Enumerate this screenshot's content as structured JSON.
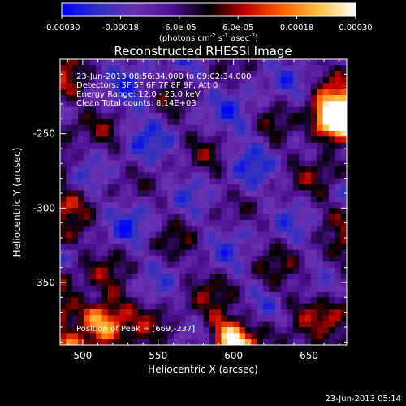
{
  "chart_data": {
    "type": "heatmap",
    "title": "Reconstructed RHESSI Image",
    "xlabel": "Heliocentric X (arcsec)",
    "ylabel": "Heliocentric Y (arcsec)",
    "xlim": [
      485,
      675
    ],
    "ylim": [
      -392,
      -200
    ],
    "xticks": [
      500,
      550,
      600,
      650
    ],
    "yticks": [
      -250,
      -300,
      -350
    ],
    "colorbar": {
      "range": [
        -0.0003,
        0.0003
      ],
      "tick_labels": [
        "-0.00030",
        "-0.00018",
        "-6.0e-05",
        "6.0e-05",
        "0.00018",
        "0.00030"
      ],
      "unit_label": "(photons cm",
      "unit_exp1": "-2",
      "unit_mid": " s",
      "unit_exp2": "-1",
      "unit_tail": " asec",
      "unit_exp3": "-2",
      "unit_close": ")",
      "colors": [
        "#0000ff",
        "#3030c0",
        "#6a32b0",
        "#4a1090",
        "#000000",
        "#c00000",
        "#ff6000",
        "#ffc040",
        "#ffffff"
      ]
    },
    "annotations": [
      "23-Jun-2013 08:56:34.000 to 09:02:34.000",
      "Detectors: 3F 5F 6F 7F 8F 9F, Att 0",
      "Energy Range: 12.0 - 25.0 keV",
      "Clean    Total counts: 8.14E+03"
    ],
    "peak_label": "Position of Peak = [669,-237]",
    "peaks": [
      {
        "x": 669,
        "y": -237,
        "v": 1.0
      },
      {
        "x": 512,
        "y": -375,
        "v": 0.95
      },
      {
        "x": 598,
        "y": -388,
        "v": 0.8
      },
      {
        "x": 665,
        "y": -245,
        "v": 0.7
      }
    ],
    "grid_size": 48
  },
  "footer": {
    "timestamp": "23-Jun-2013 05:14"
  }
}
